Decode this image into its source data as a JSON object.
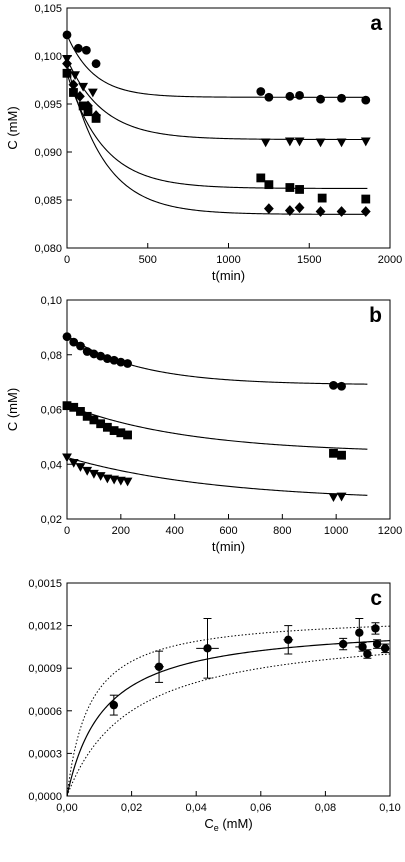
{
  "chart_data": [
    {
      "type": "scatter",
      "panel_label": "a",
      "xlabel": "t(min)",
      "ylabel": "C (mM)",
      "xlim": [
        0,
        2000
      ],
      "ylim": [
        0.08,
        0.105
      ],
      "xticks": [
        "0",
        "500",
        "1000",
        "1500",
        "2000"
      ],
      "yticks": [
        "0,080",
        "0,085",
        "0,090",
        "0,095",
        "0,100",
        "0,105"
      ],
      "series": [
        {
          "marker": "circle",
          "x": [
            0,
            70,
            120,
            180,
            1200,
            1250,
            1380,
            1440,
            1570,
            1700,
            1850
          ],
          "y": [
            0.1022,
            0.1008,
            0.1006,
            0.0992,
            0.0963,
            0.0957,
            0.0958,
            0.0959,
            0.0955,
            0.0956,
            0.0954
          ],
          "fit": {
            "c0": 0.1022,
            "cinf": 0.0957,
            "k": 0.006
          }
        },
        {
          "marker": "triangle-down",
          "x": [
            0,
            50,
            100,
            160,
            1230,
            1380,
            1440,
            1570,
            1700,
            1850
          ],
          "y": [
            0.0997,
            0.098,
            0.0968,
            0.0962,
            0.091,
            0.0911,
            0.0911,
            0.091,
            0.091,
            0.0911
          ],
          "fit": {
            "c0": 0.0997,
            "cinf": 0.0913,
            "k": 0.0045
          }
        },
        {
          "marker": "square",
          "x": [
            0,
            40,
            100,
            130,
            180,
            1200,
            1250,
            1380,
            1440,
            1580,
            1850
          ],
          "y": [
            0.0982,
            0.0962,
            0.0948,
            0.0942,
            0.0935,
            0.0873,
            0.0866,
            0.0863,
            0.0861,
            0.0852,
            0.0851
          ],
          "fit": {
            "c0": 0.0982,
            "cinf": 0.0862,
            "k": 0.0045
          }
        },
        {
          "marker": "diamond",
          "x": [
            0,
            40,
            80,
            130,
            180,
            1250,
            1380,
            1440,
            1570,
            1700,
            1850
          ],
          "y": [
            0.0992,
            0.097,
            0.0958,
            0.0948,
            0.0938,
            0.0841,
            0.0839,
            0.0842,
            0.0838,
            0.0838,
            0.0838
          ],
          "fit": {
            "c0": 0.0992,
            "cinf": 0.0835,
            "k": 0.0045
          }
        }
      ]
    },
    {
      "type": "scatter",
      "panel_label": "b",
      "xlabel": "t(min)",
      "ylabel": "C (mM)",
      "xlim": [
        0,
        1200
      ],
      "ylim": [
        0.02,
        0.1
      ],
      "xticks": [
        "0",
        "200",
        "400",
        "600",
        "800",
        "1000",
        "1200"
      ],
      "yticks": [
        "0,02",
        "0,04",
        "0,06",
        "0,08",
        "0,10"
      ],
      "series": [
        {
          "marker": "circle",
          "x": [
            0,
            25,
            50,
            75,
            100,
            125,
            150,
            175,
            200,
            225,
            990,
            1020
          ],
          "y": [
            0.0866,
            0.0846,
            0.0832,
            0.0812,
            0.0803,
            0.0795,
            0.0786,
            0.078,
            0.0773,
            0.0768,
            0.0688,
            0.0685
          ],
          "fit": {
            "c0": 0.087,
            "cinf": 0.069,
            "k": 0.0038
          }
        },
        {
          "marker": "square",
          "x": [
            0,
            25,
            50,
            75,
            100,
            125,
            150,
            175,
            200,
            225,
            990,
            1020
          ],
          "y": [
            0.0614,
            0.0608,
            0.0593,
            0.0575,
            0.0562,
            0.0548,
            0.0535,
            0.0523,
            0.0515,
            0.0507,
            0.044,
            0.0433
          ],
          "fit": {
            "c0": 0.0615,
            "cinf": 0.044,
            "k": 0.0022
          }
        },
        {
          "marker": "triangle-down",
          "x": [
            0,
            25,
            50,
            75,
            100,
            125,
            150,
            175,
            200,
            225,
            990,
            1020
          ],
          "y": [
            0.0425,
            0.0405,
            0.039,
            0.0376,
            0.0365,
            0.0357,
            0.0348,
            0.0344,
            0.034,
            0.0337,
            0.028,
            0.0282
          ],
          "fit": {
            "c0": 0.0425,
            "cinf": 0.0265,
            "k": 0.0018
          }
        }
      ]
    },
    {
      "type": "scatter",
      "panel_label": "c",
      "xlabel": "C",
      "xlabel_sub": "e",
      "xlabel_unit": " (mM)",
      "ylabel": "",
      "xlim": [
        0,
        0.1
      ],
      "ylim": [
        0,
        0.0015
      ],
      "xticks": [
        "0,00",
        "0,02",
        "0,04",
        "0,06",
        "0,08",
        "0,10"
      ],
      "yticks": [
        "0,0000",
        "0,0003",
        "0,0006",
        "0,0009",
        "0,0012",
        "0,0015"
      ],
      "points": [
        {
          "x": 0.0145,
          "y": 0.00064,
          "yerr": 7e-05,
          "xerr": 0.0012
        },
        {
          "x": 0.0285,
          "y": 0.00091,
          "yerr": 0.00011,
          "xerr": 0.0015
        },
        {
          "x": 0.0435,
          "y": 0.00104,
          "yerr": 0.00021,
          "xerr": 0.0035
        },
        {
          "x": 0.0685,
          "y": 0.0011,
          "yerr": 0.0001,
          "xerr": 0.0015
        },
        {
          "x": 0.0855,
          "y": 0.00107,
          "yerr": 4e-05,
          "xerr": 0.0012
        },
        {
          "x": 0.0905,
          "y": 0.00115,
          "yerr": 0.0001,
          "xerr": 0.001
        },
        {
          "x": 0.0915,
          "y": 0.00105,
          "yerr": 3e-05,
          "xerr": 0.0008
        },
        {
          "x": 0.093,
          "y": 0.001,
          "yerr": 3e-05,
          "xerr": 0.0008
        },
        {
          "x": 0.0955,
          "y": 0.00118,
          "yerr": 4e-05,
          "xerr": 0.0008
        },
        {
          "x": 0.096,
          "y": 0.00107,
          "yerr": 3e-05,
          "xerr": 0.0008
        },
        {
          "x": 0.0985,
          "y": 0.00104,
          "yerr": 3e-05,
          "xerr": 0.0008
        }
      ],
      "fit": {
        "qmax": 0.00122,
        "K": 0.0115
      },
      "fit_lower": {
        "qmax": 0.0012,
        "K": 0.02
      },
      "fit_upper": {
        "qmax": 0.00128,
        "K": 0.007
      }
    }
  ]
}
